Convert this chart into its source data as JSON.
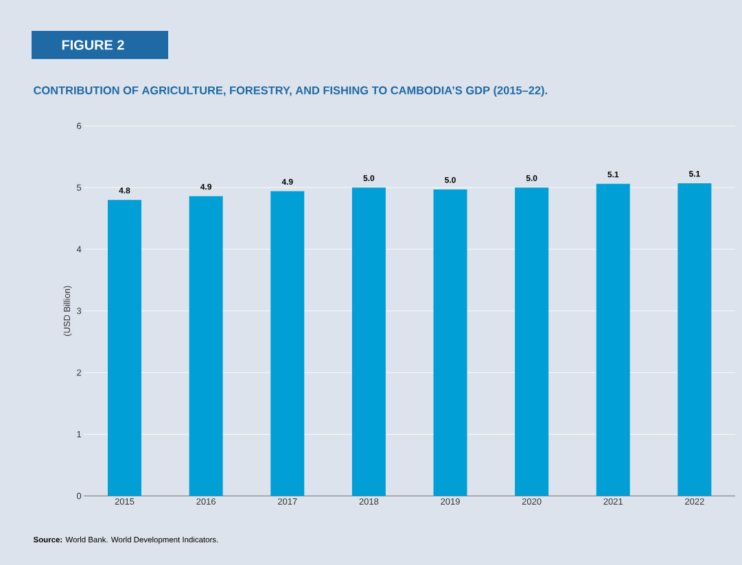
{
  "chart_data": {
    "type": "bar",
    "title": "FIGURE 2",
    "subtitle": "CONTRIBUTION OF AGRICULTURE, FORESTRY, AND FISHING TO CAMBODIA’S GDP (2015–22).",
    "ylabel": "(USD Billion)",
    "categories": [
      "2015",
      "2016",
      "2017",
      "2018",
      "2019",
      "2020",
      "2021",
      "2022"
    ],
    "values": [
      4.8,
      4.86,
      4.94,
      5.0,
      4.97,
      5.0,
      5.06,
      5.07
    ],
    "value_labels": [
      "4.8",
      "4.9",
      "4.9",
      "5.0",
      "5.0",
      "5.0",
      "5.1",
      "5.1"
    ],
    "color": "#009fd6",
    "ylim": [
      0,
      6
    ],
    "yticks": [
      0,
      1,
      2,
      3,
      4,
      5,
      6
    ],
    "grid": "y",
    "annotations": [
      "**Source:** World Bank. World Development Indicators."
    ]
  }
}
